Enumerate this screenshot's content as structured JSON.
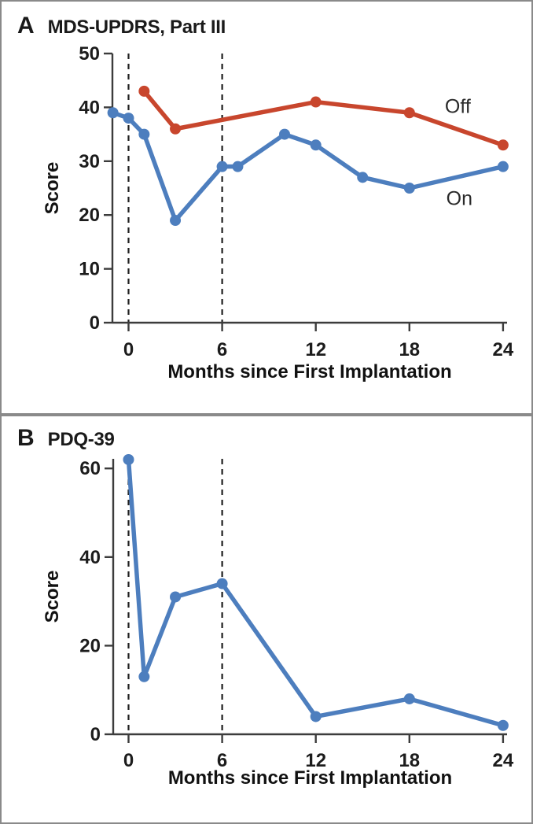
{
  "figure": {
    "type": "two-panel line figure",
    "xlabel_shared": "Months since First Implantation",
    "ylabel_shared": "Score",
    "colors": {
      "on_blue": "#4d7ebe",
      "off_red": "#c8462d",
      "axis": "#3c3c3c",
      "text": "#1c1c1c",
      "frame_gray": "#8a8a8a",
      "background": "#ffffff"
    }
  },
  "chart_data": [
    {
      "type": "line",
      "panel_letter": "A",
      "title": "MDS-UPDRS, Part III",
      "xlabel": "Months since First Implantation",
      "ylabel": "Score",
      "x_axis": {
        "ticks": [
          0,
          6,
          12,
          18,
          24
        ],
        "range": [
          -1.1,
          24.2
        ]
      },
      "y_axis": {
        "ticks": [
          0,
          10,
          20,
          30,
          40,
          50
        ],
        "range": [
          0,
          50
        ]
      },
      "dashed_vlines_x": [
        0,
        6
      ],
      "grid": false,
      "legend_position": "inline-labels-right",
      "series": [
        {
          "name": "Off",
          "color": "#c8462d",
          "points": [
            [
              1,
              43
            ],
            [
              3,
              36
            ],
            [
              12,
              41
            ],
            [
              18,
              39
            ],
            [
              24,
              33
            ]
          ],
          "label": {
            "text": "Off",
            "x": 21.1,
            "y": 40.3
          }
        },
        {
          "name": "On",
          "color": "#4d7ebe",
          "points": [
            [
              -1,
              39
            ],
            [
              0,
              38
            ],
            [
              1,
              35
            ],
            [
              3,
              19
            ],
            [
              6,
              29
            ],
            [
              7,
              29
            ],
            [
              10,
              35
            ],
            [
              12,
              33
            ],
            [
              15,
              27
            ],
            [
              18,
              25
            ],
            [
              24,
              29
            ]
          ],
          "label": {
            "text": "On",
            "x": 21.2,
            "y": 23.2
          }
        }
      ]
    },
    {
      "type": "line",
      "panel_letter": "B",
      "title": "PDQ-39",
      "xlabel": "Months since First Implantation",
      "ylabel": "Score",
      "x_axis": {
        "ticks": [
          0,
          6,
          12,
          18,
          24
        ],
        "range": [
          -1.1,
          24.2
        ]
      },
      "y_axis": {
        "ticks": [
          0,
          20,
          40,
          60
        ],
        "range": [
          0,
          62
        ]
      },
      "dashed_vlines_x": [
        0,
        6
      ],
      "grid": false,
      "legend_position": "none",
      "series": [
        {
          "name": "PDQ-39",
          "color": "#4d7ebe",
          "points": [
            [
              0,
              62
            ],
            [
              1,
              13
            ],
            [
              3,
              31
            ],
            [
              6,
              34
            ],
            [
              12,
              4
            ],
            [
              18,
              8
            ],
            [
              24,
              2
            ]
          ],
          "label": null
        }
      ]
    }
  ]
}
